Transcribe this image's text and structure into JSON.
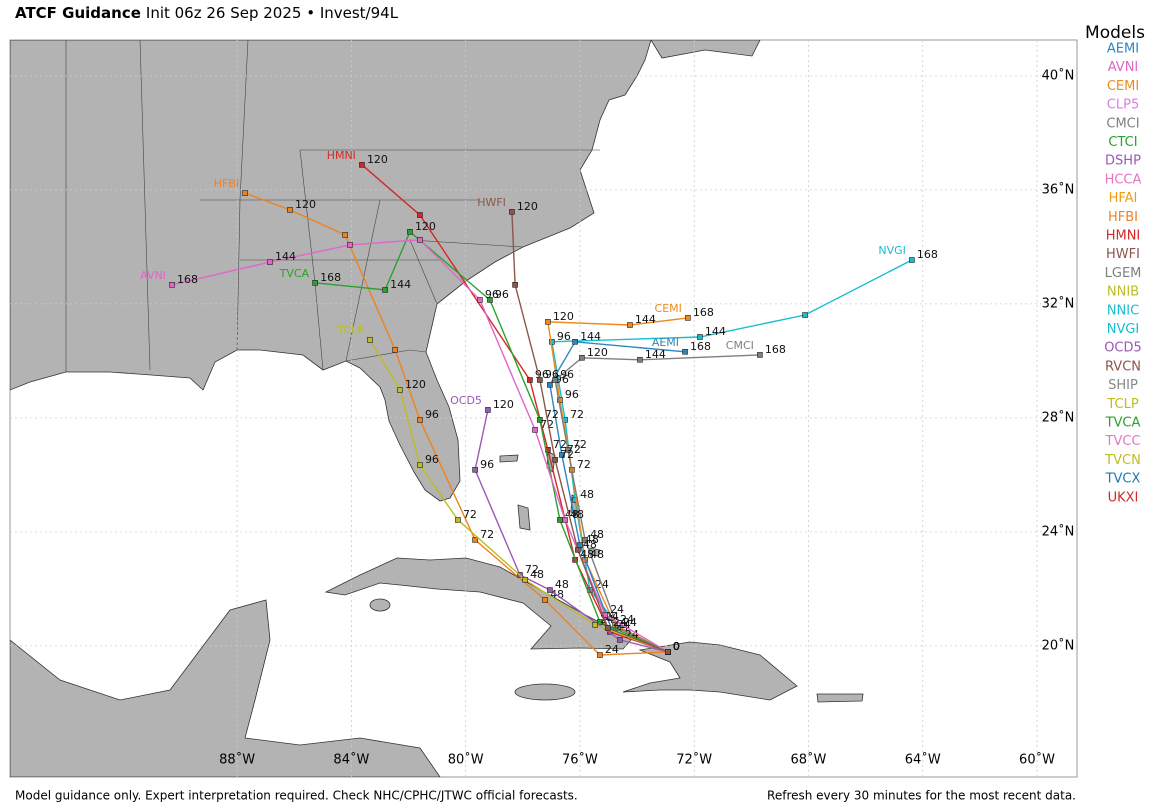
{
  "header": {
    "title": "ATCF Guidance",
    "subtitle": "Init 06z 26 Sep 2025 • Invest/94L"
  },
  "map": {
    "xlim": [
      -95.95,
      -58.6
    ],
    "ylim": [
      15.4,
      41.26
    ],
    "grid": true,
    "xticks": [
      {
        "value": -88,
        "label": "88˚W"
      },
      {
        "value": -84,
        "label": "84˚W"
      },
      {
        "value": -80,
        "label": "80˚W"
      },
      {
        "value": -76,
        "label": "76˚W"
      },
      {
        "value": -72,
        "label": "72˚W"
      },
      {
        "value": -68,
        "label": "68˚W"
      },
      {
        "value": -64,
        "label": "64˚W"
      },
      {
        "value": -60,
        "label": "60˚W"
      }
    ],
    "yticks": [
      {
        "value": 20,
        "label": "20˚N"
      },
      {
        "value": 24,
        "label": "24˚N"
      },
      {
        "value": 28,
        "label": "28˚N"
      },
      {
        "value": 32,
        "label": "32˚N"
      },
      {
        "value": 36,
        "label": "36˚N"
      },
      {
        "value": 40,
        "label": "40˚N"
      }
    ]
  },
  "legend": {
    "title": "Models",
    "models": [
      {
        "name": "AEMI",
        "color": "#2e86c1"
      },
      {
        "name": "AVNI",
        "color": "#e066c8"
      },
      {
        "name": "CEMI",
        "color": "#f08a1c"
      },
      {
        "name": "CLP5",
        "color": "#e07de0"
      },
      {
        "name": "CMCI",
        "color": "#7f7f7f"
      },
      {
        "name": "CTCI",
        "color": "#2ca02c"
      },
      {
        "name": "DSHP",
        "color": "#9b59b6"
      },
      {
        "name": "HCCA",
        "color": "#e377c2"
      },
      {
        "name": "HFAI",
        "color": "#f39c12"
      },
      {
        "name": "HFBI",
        "color": "#f0821e"
      },
      {
        "name": "HMNI",
        "color": "#d62728"
      },
      {
        "name": "HWFI",
        "color": "#8c564b"
      },
      {
        "name": "LGEM",
        "color": "#7f7f7f"
      },
      {
        "name": "NNIB",
        "color": "#bcbd22"
      },
      {
        "name": "NNIC",
        "color": "#17becf"
      },
      {
        "name": "NVGI",
        "color": "#17becf"
      },
      {
        "name": "OCD5",
        "color": "#9b59b6"
      },
      {
        "name": "RVCN",
        "color": "#8c564b"
      },
      {
        "name": "SHIP",
        "color": "#888888"
      },
      {
        "name": "TCLP",
        "color": "#bcbd22"
      },
      {
        "name": "TVCA",
        "color": "#2ca02c"
      },
      {
        "name": "TVCC",
        "color": "#e377c2"
      },
      {
        "name": "TVCN",
        "color": "#bcbd22"
      },
      {
        "name": "TVCX",
        "color": "#1f77b4"
      },
      {
        "name": "UKXI",
        "color": "#d62728"
      }
    ]
  },
  "tracks": [
    {
      "name": "NVGI",
      "lon": [
        -72.92,
        -74.6,
        -75.65,
        -76.17,
        -76.52,
        -76.98,
        -71.8,
        -68.12,
        -64.38
      ],
      "lat": [
        19.79,
        20.63,
        21.96,
        25.12,
        27.93,
        30.67,
        30.84,
        31.61,
        33.54
      ],
      "hours": [
        0,
        null,
        24,
        48,
        72,
        96,
        144,
        null,
        168
      ]
    },
    {
      "name": "CEMI",
      "lon": [
        -72.92,
        -74.77,
        -75.82,
        -76.28,
        -76.7,
        -77.12,
        -74.25,
        -72.22
      ],
      "lat": [
        19.79,
        20.74,
        23.02,
        26.18,
        28.63,
        31.37,
        31.26,
        31.51
      ],
      "hours": [
        0,
        24,
        48,
        72,
        96,
        120,
        144,
        168
      ]
    },
    {
      "name": "AEMI",
      "lon": [
        -72.92,
        -74.88,
        -76.0,
        -76.63,
        -77.05,
        -76.17,
        -72.32
      ],
      "lat": [
        19.79,
        20.56,
        23.54,
        26.7,
        29.16,
        30.67,
        30.32
      ],
      "hours": [
        0,
        24,
        48,
        72,
        96,
        144,
        168
      ]
    },
    {
      "name": "CMCI",
      "lon": [
        -72.92,
        -74.67,
        -75.82,
        -76.42,
        -76.87,
        -75.93,
        -73.9,
        -69.7
      ],
      "lat": [
        19.79,
        20.63,
        23.72,
        26.88,
        29.33,
        30.11,
        30.04,
        30.21
      ],
      "hours": [
        0,
        24,
        48,
        72,
        96,
        120,
        144,
        168
      ]
    },
    {
      "name": "HMNI",
      "lon": [
        -72.92,
        -74.95,
        -76.17,
        -77.12,
        -77.75,
        -81.6,
        -83.63
      ],
      "lat": [
        19.79,
        20.49,
        23.02,
        26.88,
        29.33,
        35.12,
        36.88
      ],
      "hours": [
        0,
        24,
        48,
        72,
        96,
        null,
        120
      ]
    },
    {
      "name": "HFBI",
      "lon": [
        -72.92,
        -75.3,
        -77.22,
        -79.67,
        -81.6,
        -82.47,
        -84.22,
        -86.15,
        -87.72
      ],
      "lat": [
        19.79,
        19.68,
        21.61,
        23.72,
        27.93,
        30.39,
        34.42,
        35.3,
        35.89
      ],
      "hours": [
        0,
        24,
        48,
        72,
        96,
        null,
        null,
        120,
        null
      ]
    },
    {
      "name": "TVCA",
      "lon": [
        -72.92,
        -75.3,
        -76.7,
        -77.4,
        -79.15,
        -81.95,
        -82.82,
        -85.27
      ],
      "lat": [
        19.79,
        20.84,
        24.42,
        27.93,
        32.14,
        34.53,
        32.49,
        32.74
      ],
      "hours": [
        0,
        24,
        48,
        72,
        96,
        120,
        144,
        168
      ]
    },
    {
      "name": "OCD5",
      "lon": [
        -72.92,
        -74.6,
        -77.05,
        -78.1,
        -79.67,
        -79.22
      ],
      "lat": [
        19.79,
        20.21,
        21.96,
        22.49,
        26.18,
        28.28
      ],
      "hours": [
        0,
        24,
        48,
        72,
        96,
        120
      ]
    },
    {
      "name": "TCLP",
      "lon": [
        -72.92,
        -75.47,
        -77.92,
        -80.27,
        -81.6,
        -82.3,
        -83.35
      ],
      "lat": [
        19.79,
        20.74,
        22.32,
        24.42,
        26.35,
        28.98,
        30.74
      ],
      "hours": [
        0,
        24,
        48,
        72,
        96,
        120,
        null
      ]
    },
    {
      "name": "AVNI",
      "lon": [
        -72.92,
        -75.12,
        -76.52,
        -77.57,
        -79.5,
        -81.6,
        -84.05,
        -86.85,
        -90.28
      ],
      "lat": [
        19.79,
        21.09,
        24.42,
        27.58,
        32.14,
        34.25,
        34.07,
        33.47,
        32.67
      ],
      "hours": [
        0,
        24,
        48,
        72,
        96,
        null,
        null,
        144,
        168
      ]
    },
    {
      "name": "HWFI",
      "lon": [
        -72.92,
        -75.02,
        -76.07,
        -76.87,
        -77.4,
        -78.27,
        -78.38
      ],
      "lat": [
        19.79,
        20.63,
        23.37,
        26.53,
        29.33,
        32.67,
        35.23
      ],
      "hours": [
        0,
        24,
        48,
        72,
        96,
        null,
        120
      ]
    }
  ],
  "footer": {
    "left": "Model guidance only. Expert interpretation required. Check NHC/CPHC/JTWC official forecasts.",
    "right": "Refresh every 30 minutes for the most recent data."
  }
}
